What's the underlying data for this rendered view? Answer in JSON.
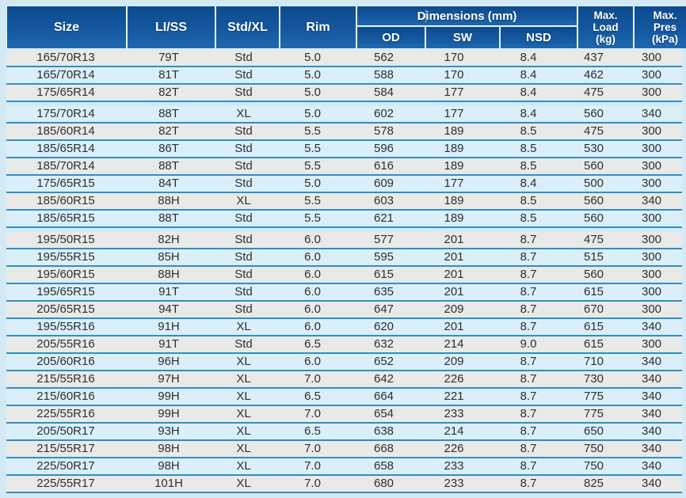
{
  "table": {
    "header": {
      "size": "Size",
      "li_ss": "LI/SS",
      "std_xl": "Std/XL",
      "rim": "Rim",
      "dimensions": "Dimensions (mm)",
      "od": "OD",
      "sw": "SW",
      "nsd": "NSD",
      "max_load": "Max.\nLoad\n(kg)",
      "max_pres": "Max.\nPres\n(kPa)"
    },
    "rows": [
      [
        "165/70R13",
        "79T",
        "Std",
        "5.0",
        "562",
        "170",
        "8.4",
        "437",
        "300"
      ],
      [
        "165/70R14",
        "81T",
        "Std",
        "5.0",
        "588",
        "170",
        "8.4",
        "462",
        "300"
      ],
      [
        "175/65R14",
        "82T",
        "Std",
        "5.0",
        "584",
        "177",
        "8.4",
        "475",
        "300"
      ],
      [
        "175/70R14",
        "88T",
        "XL",
        "5.0",
        "602",
        "177",
        "8.4",
        "560",
        "340"
      ],
      [
        "185/60R14",
        "82T",
        "Std",
        "5.5",
        "578",
        "189",
        "8.5",
        "475",
        "300"
      ],
      [
        "185/65R14",
        "86T",
        "Std",
        "5.5",
        "596",
        "189",
        "8.5",
        "530",
        "300"
      ],
      [
        "185/70R14",
        "88T",
        "Std",
        "5.5",
        "616",
        "189",
        "8.5",
        "560",
        "300"
      ],
      [
        "175/65R15",
        "84T",
        "Std",
        "5.0",
        "609",
        "177",
        "8.4",
        "500",
        "300"
      ],
      [
        "185/60R15",
        "88H",
        "XL",
        "5.5",
        "603",
        "189",
        "8.5",
        "560",
        "340"
      ],
      [
        "185/65R15",
        "88T",
        "Std",
        "5.5",
        "621",
        "189",
        "8.5",
        "560",
        "300"
      ],
      [
        "195/50R15",
        "82H",
        "Std",
        "6.0",
        "577",
        "201",
        "8.7",
        "475",
        "300"
      ],
      [
        "195/55R15",
        "85H",
        "Std",
        "6.0",
        "595",
        "201",
        "8.7",
        "515",
        "300"
      ],
      [
        "195/60R15",
        "88H",
        "Std",
        "6.0",
        "615",
        "201",
        "8.7",
        "560",
        "300"
      ],
      [
        "195/65R15",
        "91T",
        "Std",
        "6.0",
        "635",
        "201",
        "8.7",
        "615",
        "300"
      ],
      [
        "205/65R15",
        "94T",
        "Std",
        "6.0",
        "647",
        "209",
        "8.7",
        "670",
        "300"
      ],
      [
        "195/55R16",
        "91H",
        "XL",
        "6.0",
        "620",
        "201",
        "8.7",
        "615",
        "340"
      ],
      [
        "205/55R16",
        "91T",
        "Std",
        "6.5",
        "632",
        "214",
        "9.0",
        "615",
        "300"
      ],
      [
        "205/60R16",
        "96H",
        "XL",
        "6.0",
        "652",
        "209",
        "8.7",
        "710",
        "340"
      ],
      [
        "215/55R16",
        "97H",
        "XL",
        "7.0",
        "642",
        "226",
        "8.7",
        "730",
        "340"
      ],
      [
        "215/60R16",
        "99H",
        "XL",
        "6.5",
        "664",
        "221",
        "8.7",
        "775",
        "340"
      ],
      [
        "225/55R16",
        "99H",
        "XL",
        "7.0",
        "654",
        "233",
        "8.7",
        "775",
        "340"
      ],
      [
        "205/50R17",
        "93H",
        "XL",
        "6.5",
        "638",
        "214",
        "8.7",
        "650",
        "340"
      ],
      [
        "215/55R17",
        "98H",
        "XL",
        "7.0",
        "668",
        "226",
        "8.7",
        "750",
        "340"
      ],
      [
        "225/50R17",
        "98H",
        "XL",
        "7.0",
        "658",
        "233",
        "8.7",
        "750",
        "340"
      ],
      [
        "225/55R17",
        "101H",
        "XL",
        "7.0",
        "680",
        "233",
        "8.7",
        "825",
        "340"
      ]
    ]
  },
  "colors": {
    "page_bg": "#d3eaf5",
    "header_blue_top": "#0d4a8d",
    "header_blue_bottom": "#1f68b0",
    "header_text": "#ffffff",
    "row_cyan": "#daeff9",
    "row_gray": "#e9eae8",
    "divider_blue": "#2e8fc8",
    "body_text": "#2f2f2f"
  }
}
